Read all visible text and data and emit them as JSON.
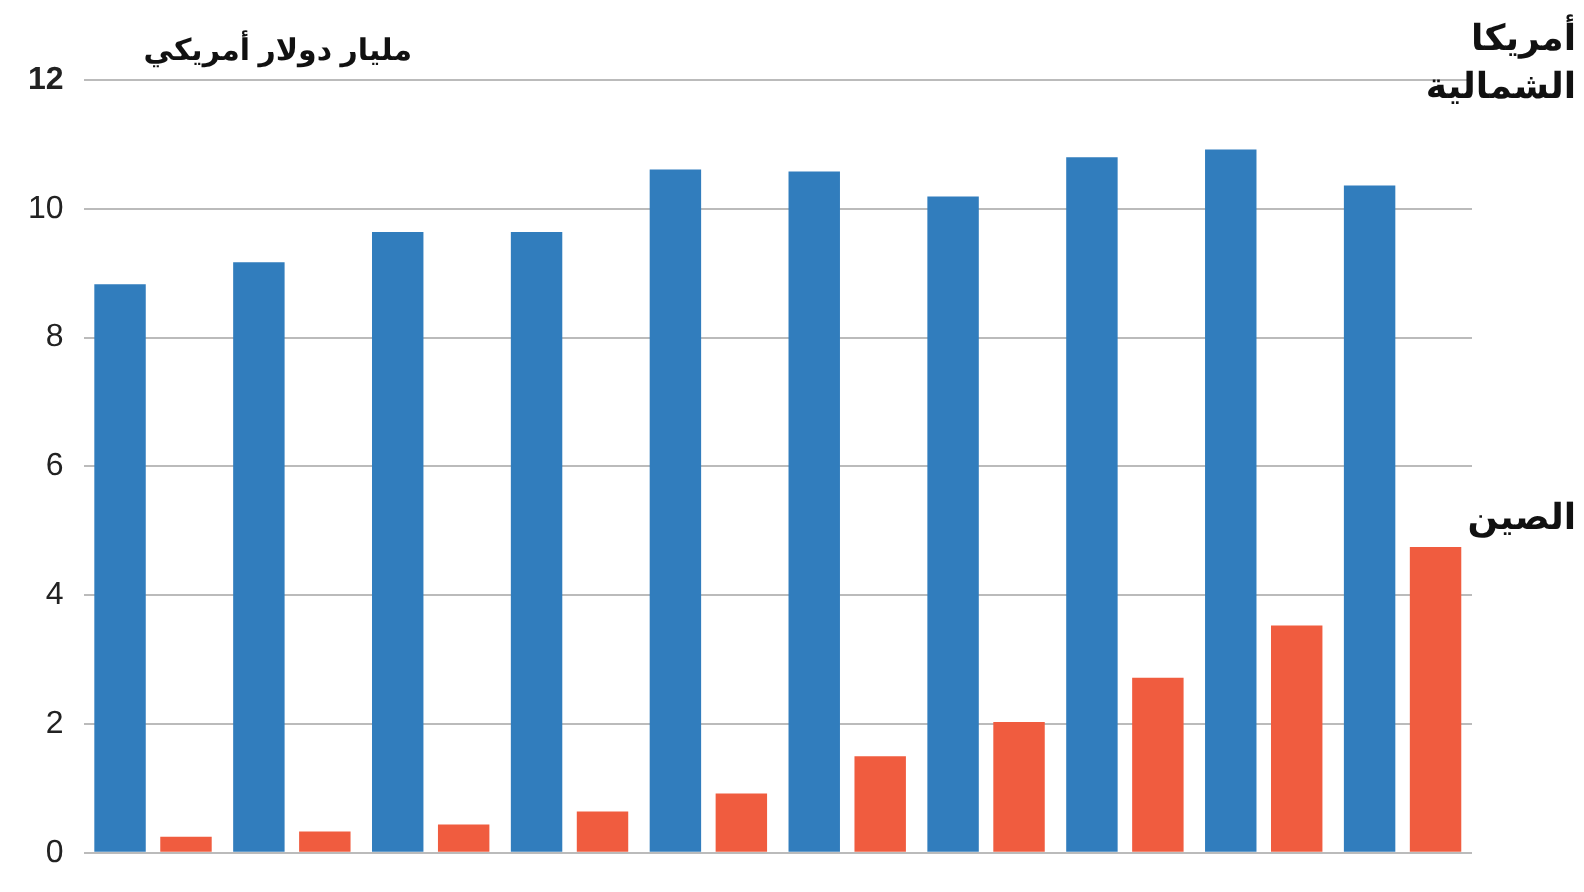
{
  "chart_data": {
    "type": "bar",
    "ylabel": "مليار دولار أمريكي",
    "categories": [
      null,
      null,
      null,
      null,
      null,
      null,
      null,
      null,
      null,
      null
    ],
    "series": [
      {
        "name": "أمريكا الشمالية",
        "color": "#317dbd",
        "values": [
          8.83,
          9.17,
          9.64,
          9.64,
          10.61,
          10.58,
          10.19,
          10.8,
          10.92,
          10.36
        ]
      },
      {
        "name": "الصين",
        "color": "#f05c3f",
        "values": [
          0.25,
          0.33,
          0.44,
          0.64,
          0.92,
          1.5,
          2.03,
          2.72,
          3.53,
          4.75
        ]
      }
    ],
    "ylim": [
      0,
      12
    ],
    "yticks": [
      0,
      2,
      4,
      6,
      8,
      10,
      12
    ],
    "grid": "y",
    "tick_labels": "y"
  }
}
